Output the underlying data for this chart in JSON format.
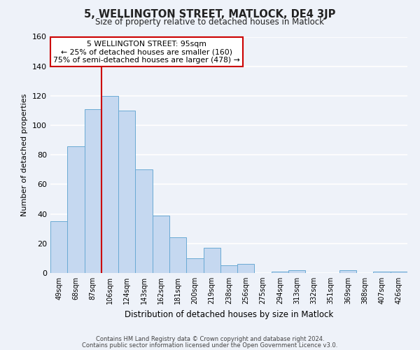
{
  "title": "5, WELLINGTON STREET, MATLOCK, DE4 3JP",
  "subtitle": "Size of property relative to detached houses in Matlock",
  "xlabel": "Distribution of detached houses by size in Matlock",
  "ylabel": "Number of detached properties",
  "footer_line1": "Contains HM Land Registry data © Crown copyright and database right 2024.",
  "footer_line2": "Contains public sector information licensed under the Open Government Licence v3.0.",
  "bin_labels": [
    "49sqm",
    "68sqm",
    "87sqm",
    "106sqm",
    "124sqm",
    "143sqm",
    "162sqm",
    "181sqm",
    "200sqm",
    "219sqm",
    "238sqm",
    "256sqm",
    "275sqm",
    "294sqm",
    "313sqm",
    "332sqm",
    "351sqm",
    "369sqm",
    "388sqm",
    "407sqm",
    "426sqm"
  ],
  "bar_values": [
    35,
    86,
    111,
    120,
    110,
    70,
    39,
    24,
    10,
    17,
    5,
    6,
    0,
    1,
    2,
    0,
    0,
    2,
    0,
    1,
    1
  ],
  "bar_color": "#c5d8f0",
  "bar_edge_color": "#6aaad4",
  "ylim": [
    0,
    160
  ],
  "yticks": [
    0,
    20,
    40,
    60,
    80,
    100,
    120,
    140,
    160
  ],
  "red_line_index": 2.5,
  "annotation_text_line1": "5 WELLINGTON STREET: 95sqm",
  "annotation_text_line2": "← 25% of detached houses are smaller (160)",
  "annotation_text_line3": "75% of semi-detached houses are larger (478) →",
  "background_color": "#eef2f9",
  "grid_color": "#ffffff",
  "annotation_box_color": "#ffffff",
  "annotation_box_edge": "#cc0000"
}
